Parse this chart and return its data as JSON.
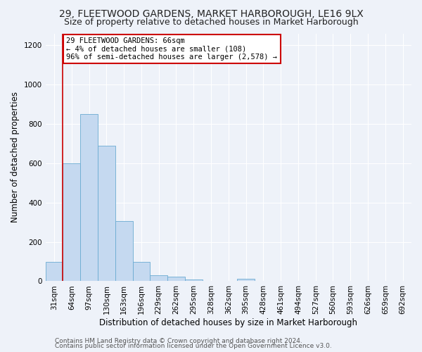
{
  "title": "29, FLEETWOOD GARDENS, MARKET HARBOROUGH, LE16 9LX",
  "subtitle": "Size of property relative to detached houses in Market Harborough",
  "xlabel": "Distribution of detached houses by size in Market Harborough",
  "ylabel": "Number of detached properties",
  "categories": [
    "31sqm",
    "64sqm",
    "97sqm",
    "130sqm",
    "163sqm",
    "196sqm",
    "229sqm",
    "262sqm",
    "295sqm",
    "328sqm",
    "362sqm",
    "395sqm",
    "428sqm",
    "461sqm",
    "494sqm",
    "527sqm",
    "560sqm",
    "593sqm",
    "626sqm",
    "659sqm",
    "692sqm"
  ],
  "values": [
    100,
    600,
    850,
    690,
    305,
    100,
    30,
    22,
    10,
    0,
    0,
    12,
    0,
    0,
    0,
    0,
    0,
    0,
    0,
    0,
    0
  ],
  "bar_color": "#c5d9f0",
  "bar_edge_color": "#6aabd2",
  "vline_x_bar_index": 1,
  "annotation_line1": "29 FLEETWOOD GARDENS: 66sqm",
  "annotation_line2": "← 4% of detached houses are smaller (108)",
  "annotation_line3": "96% of semi-detached houses are larger (2,578) →",
  "annotation_box_facecolor": "#ffffff",
  "annotation_box_edgecolor": "#cc0000",
  "vline_color": "#cc0000",
  "ylim": [
    0,
    1260
  ],
  "yticks": [
    0,
    200,
    400,
    600,
    800,
    1000,
    1200
  ],
  "background_color": "#eef2f9",
  "grid_color": "#ffffff",
  "title_fontsize": 10,
  "subtitle_fontsize": 9,
  "xlabel_fontsize": 8.5,
  "ylabel_fontsize": 8.5,
  "tick_fontsize": 7.5,
  "annotation_fontsize": 7.5,
  "footer_fontsize": 6.5,
  "footer1": "Contains HM Land Registry data © Crown copyright and database right 2024.",
  "footer2": "Contains public sector information licensed under the Open Government Licence v3.0."
}
